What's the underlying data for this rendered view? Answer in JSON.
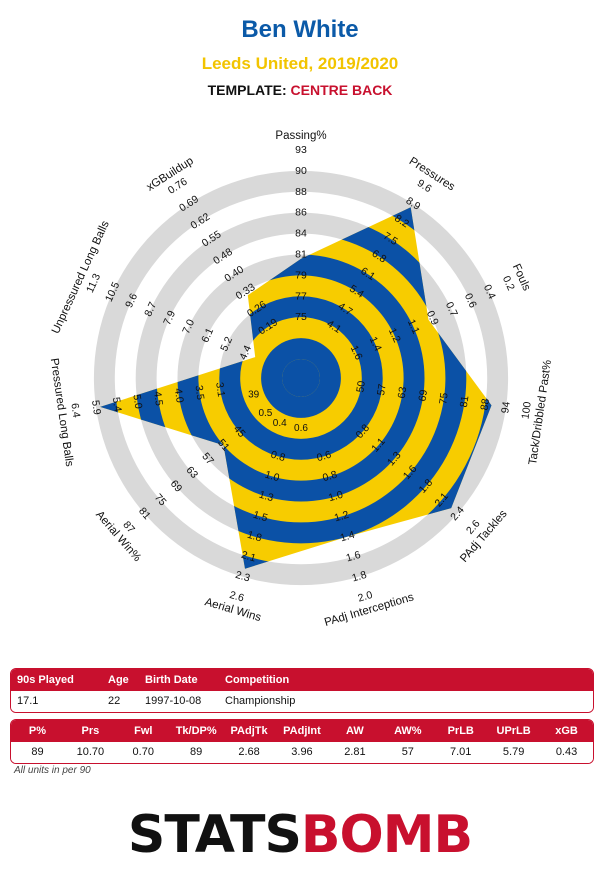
{
  "header": {
    "title": "Ben White",
    "subtitle": "Leeds United, 2019/2020",
    "template_label": "TEMPLATE:",
    "template_value": "CENTRE BACK"
  },
  "colors": {
    "title": "#0b5aa8",
    "subtitle": "#f2c400",
    "accent": "#c8102e",
    "ring_blue": "#0b51a6",
    "ring_yellow": "#f7cc00",
    "ring_grey": "#d9d9d9"
  },
  "chart_data": {
    "type": "radar",
    "ring_count": 10,
    "values_normalized": [
      0.48,
      0.88,
      0.58,
      0.83,
      0.86,
      0.7,
      0.86,
      0.4,
      0.88,
      0.15,
      0.38
    ],
    "axes": [
      {
        "label": "Passing%",
        "ticks": [
          "75",
          "77",
          "79",
          "81",
          "84",
          "86",
          "88",
          "90",
          "93"
        ]
      },
      {
        "label": "Pressures",
        "ticks": [
          "4.1",
          "4.7",
          "5.4",
          "6.1",
          "6.8",
          "7.5",
          "8.2",
          "8.9",
          "9.6"
        ]
      },
      {
        "label": "Fouls",
        "ticks": [
          "1.6",
          "1.4",
          "1.2",
          "1.1",
          "0.9",
          "0.7",
          "0.6",
          "0.4",
          "0.2"
        ]
      },
      {
        "label": "Tack/Dribbled Past%",
        "ticks": [
          "50",
          "57",
          "63",
          "69",
          "75",
          "81",
          "88",
          "94",
          "100"
        ]
      },
      {
        "label": "PAdj Tackles",
        "ticks": [
          "0.8",
          "1.1",
          "1.3",
          "1.6",
          "1.8",
          "2.1",
          "2.4",
          "2.6"
        ]
      },
      {
        "label": "PAdj Interceptions",
        "ticks": [
          "0.6",
          "0.8",
          "1.0",
          "1.2",
          "1.4",
          "1.6",
          "1.8",
          "2.0"
        ]
      },
      {
        "label": "Aerial Wins",
        "ticks": [
          "0.8",
          "1.0",
          "1.3",
          "1.5",
          "1.8",
          "2.1",
          "2.3",
          "2.6"
        ]
      },
      {
        "label": "Aerial Win%",
        "ticks": [
          "45",
          "51",
          "57",
          "63",
          "69",
          "75",
          "81",
          "87"
        ]
      },
      {
        "label": "Pressured Long Balls",
        "ticks": [
          "3.1",
          "3.5",
          "4.0",
          "4.5",
          "5.0",
          "5.4",
          "5.9",
          "6.4"
        ]
      },
      {
        "label": "Unpressured Long Balls",
        "ticks": [
          "4.4",
          "5.2",
          "6.1",
          "7.0",
          "7.9",
          "8.7",
          "9.6",
          "10.5",
          "11.3"
        ]
      },
      {
        "label": "xGBuildup",
        "ticks": [
          "0.19",
          "0.26",
          "0.33",
          "0.40",
          "0.48",
          "0.55",
          "0.62",
          "0.69",
          "0.76"
        ]
      }
    ],
    "center_ticks": [
      "39",
      "0.5",
      "0.4",
      "0.6"
    ]
  },
  "info_table": {
    "headers": [
      "90s Played",
      "Age",
      "Birth Date",
      "Competition"
    ],
    "values": [
      "17.1",
      "22",
      "1997-10-08",
      "Championship"
    ]
  },
  "stats_table": {
    "headers": [
      "P%",
      "Prs",
      "Fwl",
      "Tk/DP%",
      "PAdjTk",
      "PAdjInt",
      "AW",
      "AW%",
      "PrLB",
      "UPrLB",
      "xGB"
    ],
    "values": [
      "89",
      "10.70",
      "0.70",
      "89",
      "2.68",
      "3.96",
      "2.81",
      "57",
      "7.01",
      "5.79",
      "0.43"
    ]
  },
  "footnote": "All units in per 90",
  "logo": {
    "part1": "STATS",
    "part2": "BOMB"
  }
}
